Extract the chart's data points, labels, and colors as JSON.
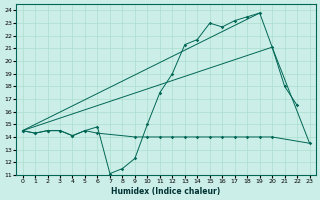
{
  "xlabel": "Humidex (Indice chaleur)",
  "background_color": "#cceee8",
  "grid_color": "#aaddcc",
  "line_color": "#006655",
  "xlim": [
    -0.5,
    23.5
  ],
  "ylim": [
    11,
    24.5
  ],
  "xticks": [
    0,
    1,
    2,
    3,
    4,
    5,
    6,
    7,
    8,
    9,
    10,
    11,
    12,
    13,
    14,
    15,
    16,
    17,
    18,
    19,
    20,
    21,
    22,
    23
  ],
  "yticks": [
    11,
    12,
    13,
    14,
    15,
    16,
    17,
    18,
    19,
    20,
    21,
    22,
    23,
    24
  ],
  "series": [
    {
      "x": [
        0,
        1,
        2,
        3,
        4,
        5,
        6,
        7,
        8,
        9,
        10,
        11,
        12,
        13,
        14,
        15,
        16,
        17,
        18,
        19,
        20,
        21,
        22
      ],
      "y": [
        14.5,
        14.3,
        14.5,
        14.5,
        14.1,
        14.5,
        14.8,
        11.1,
        11.5,
        12.3,
        15.0,
        17.5,
        19.0,
        21.3,
        21.7,
        23.0,
        22.7,
        23.2,
        23.5,
        23.8,
        21.1,
        18.0,
        16.5
      ],
      "marker": true
    },
    {
      "x": [
        0,
        1,
        2,
        3,
        4,
        5,
        6,
        9,
        10,
        11,
        12,
        13,
        14,
        15,
        16,
        17,
        18,
        19,
        20,
        23
      ],
      "y": [
        14.5,
        14.3,
        14.5,
        14.5,
        14.1,
        14.5,
        14.3,
        14.0,
        14.0,
        14.0,
        14.0,
        14.0,
        14.0,
        14.0,
        14.0,
        14.0,
        14.0,
        14.0,
        14.0,
        13.5
      ],
      "marker": true
    },
    {
      "x": [
        0,
        19
      ],
      "y": [
        14.5,
        23.8
      ],
      "marker": false
    },
    {
      "x": [
        0,
        20,
        23
      ],
      "y": [
        14.5,
        21.1,
        13.5
      ],
      "marker": false
    }
  ]
}
